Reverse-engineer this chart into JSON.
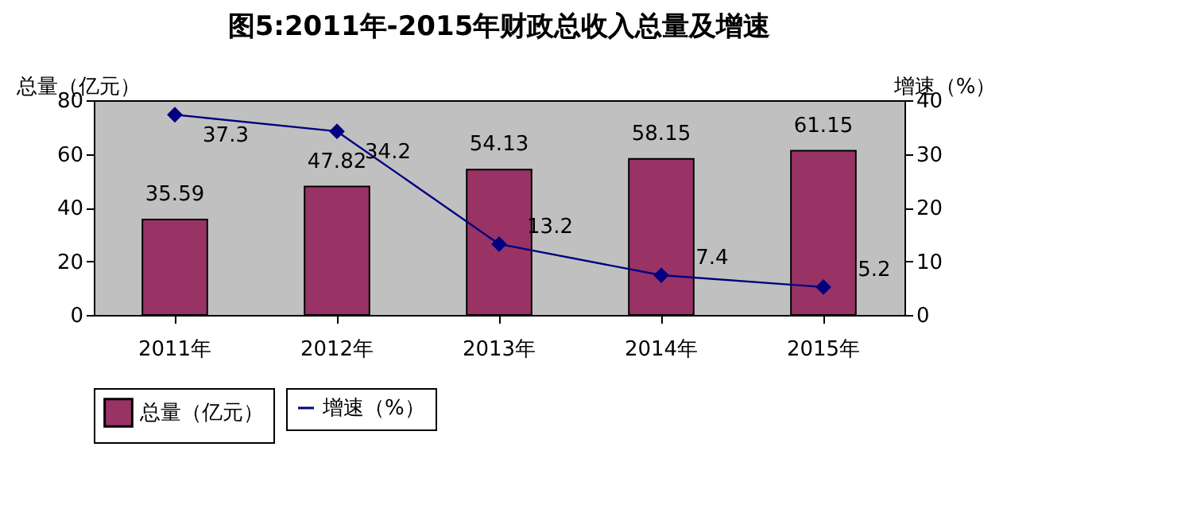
{
  "chart_data": {
    "type": "bar",
    "title": "图5:2011年-2015年财政总收入总量及增速",
    "categories": [
      "2011年",
      "2012年",
      "2013年",
      "2014年",
      "2015年"
    ],
    "ylabel": "总量（亿元）",
    "y2label": "增速（%）",
    "ylim": [
      0,
      80
    ],
    "yticks": [
      0,
      20,
      40,
      60,
      80
    ],
    "y2lim": [
      0,
      40
    ],
    "y2ticks": [
      0,
      10,
      20,
      30,
      40
    ],
    "series": [
      {
        "name": "总量（亿元）",
        "type": "bar",
        "color": "#993366",
        "values": [
          35.59,
          47.82,
          54.13,
          58.15,
          61.15
        ]
      },
      {
        "name": "增速（%）",
        "type": "line",
        "axis": "y2",
        "color": "#000080",
        "values": [
          37.3,
          34.2,
          13.2,
          7.4,
          5.2
        ]
      }
    ],
    "data_labels": true,
    "marker": "diamond",
    "line_style": "solid",
    "grid": false,
    "legend": "bottom"
  }
}
